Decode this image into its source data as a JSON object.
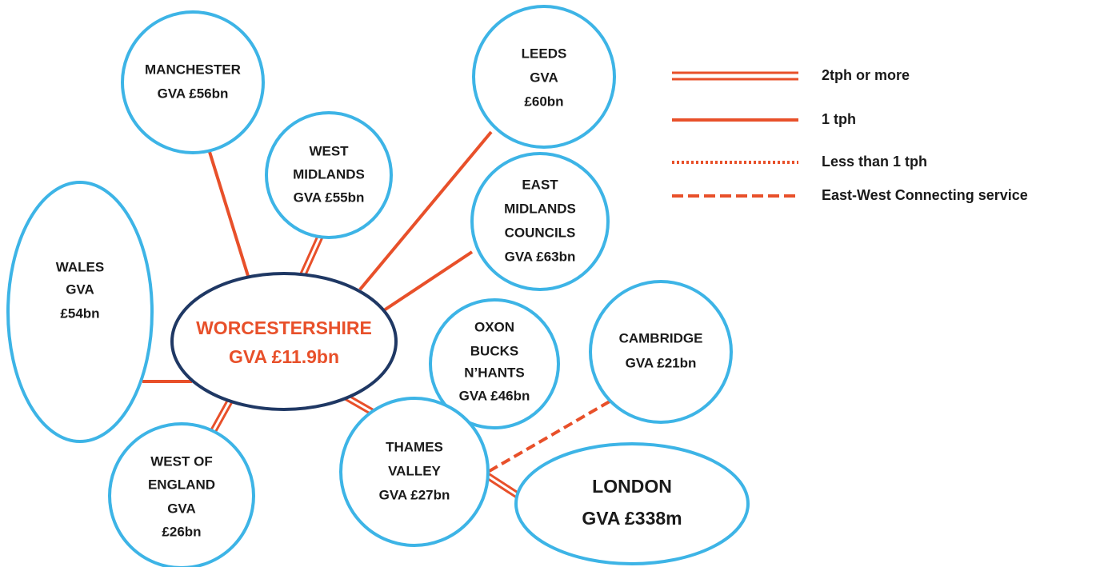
{
  "nodes": [
    {
      "lines": [
        "MANCHESTER",
        "GVA £56bn"
      ]
    },
    {
      "lines": [
        "WEST",
        "MIDLANDS",
        "GVA £55bn"
      ]
    },
    {
      "lines": [
        "LEEDS",
        "GVA",
        "£60bn"
      ]
    },
    {
      "lines": [
        "EAST",
        "MIDLANDS",
        "COUNCILS",
        "GVA £63bn"
      ]
    },
    {
      "lines": [
        "WALES",
        "GVA",
        "£54bn"
      ]
    },
    {
      "lines": [
        "WORCESTERSHIRE",
        "GVA £11.9bn"
      ]
    },
    {
      "lines": [
        "OXON",
        "BUCKS",
        "N’HANTS",
        "GVA £46bn"
      ]
    },
    {
      "lines": [
        "CAMBRIDGE",
        "GVA £21bn"
      ]
    },
    {
      "lines": [
        "THAMES",
        "VALLEY",
        "GVA £27bn"
      ]
    },
    {
      "lines": [
        "WEST OF",
        "ENGLAND",
        "GVA",
        "£26bn"
      ]
    },
    {
      "lines": [
        "LONDON",
        "GVA £338m"
      ]
    }
  ],
  "legend": [
    "2tph or more",
    "1 tph",
    "Less than 1 tph",
    "East-West Connecting service"
  ]
}
